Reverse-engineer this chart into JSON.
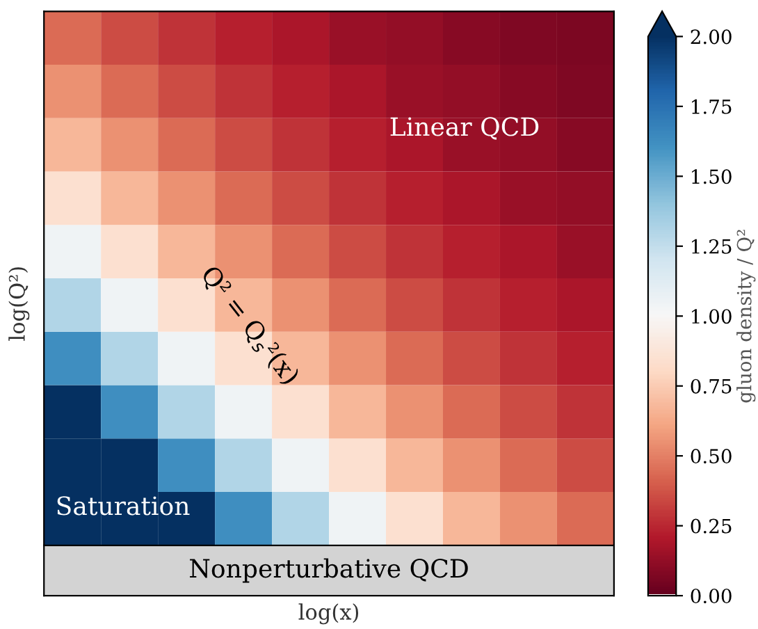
{
  "chart_data": {
    "type": "heatmap",
    "xlabel": "log(x)",
    "ylabel": "log(Q²)",
    "clabel": "gluon density / Q²",
    "categories": [
      null,
      null,
      null,
      null,
      null,
      null,
      null,
      null,
      null,
      null
    ],
    "y_categories": [
      null,
      null,
      null,
      null,
      null,
      null,
      null,
      null,
      null,
      null
    ],
    "cells": [
      [
        0.43,
        0.35,
        0.28,
        0.22,
        0.18,
        0.14,
        0.12,
        0.09,
        0.07,
        0.06
      ],
      [
        0.54,
        0.43,
        0.35,
        0.28,
        0.22,
        0.18,
        0.14,
        0.12,
        0.09,
        0.07
      ],
      [
        0.67,
        0.54,
        0.43,
        0.35,
        0.28,
        0.22,
        0.18,
        0.14,
        0.12,
        0.09
      ],
      [
        0.84,
        0.67,
        0.54,
        0.43,
        0.35,
        0.28,
        0.22,
        0.18,
        0.14,
        0.12
      ],
      [
        1.04,
        0.84,
        0.67,
        0.54,
        0.43,
        0.35,
        0.28,
        0.22,
        0.18,
        0.14
      ],
      [
        1.3,
        1.04,
        0.84,
        0.67,
        0.54,
        0.43,
        0.35,
        0.28,
        0.22,
        0.18
      ],
      [
        1.62,
        1.3,
        1.04,
        0.84,
        0.67,
        0.54,
        0.43,
        0.35,
        0.28,
        0.22
      ],
      [
        2.0,
        1.62,
        1.3,
        1.04,
        0.84,
        0.67,
        0.54,
        0.43,
        0.35,
        0.28
      ],
      [
        2.0,
        2.0,
        1.62,
        1.3,
        1.04,
        0.84,
        0.67,
        0.54,
        0.43,
        0.35
      ],
      [
        2.0,
        2.0,
        2.0,
        1.62,
        1.3,
        1.04,
        0.84,
        0.67,
        0.54,
        0.43
      ]
    ],
    "clim": [
      0,
      2
    ],
    "cticks": [
      {
        "value": 0,
        "label": "0.00"
      },
      {
        "value": 0.25,
        "label": "0.25"
      },
      {
        "value": 0.5,
        "label": "0.50"
      },
      {
        "value": 0.75,
        "label": "0.75"
      },
      {
        "value": 1,
        "label": "1.00"
      },
      {
        "value": 1.25,
        "label": "1.25"
      },
      {
        "value": 1.5,
        "label": "1.50"
      },
      {
        "value": 1.75,
        "label": "1.75"
      },
      {
        "value": 2,
        "label": "2.00"
      }
    ],
    "annotations": [
      "Linear QCD",
      "Saturation",
      "Q² = Q$_{s}$²(x)",
      "Nonperturbative QCD"
    ]
  }
}
